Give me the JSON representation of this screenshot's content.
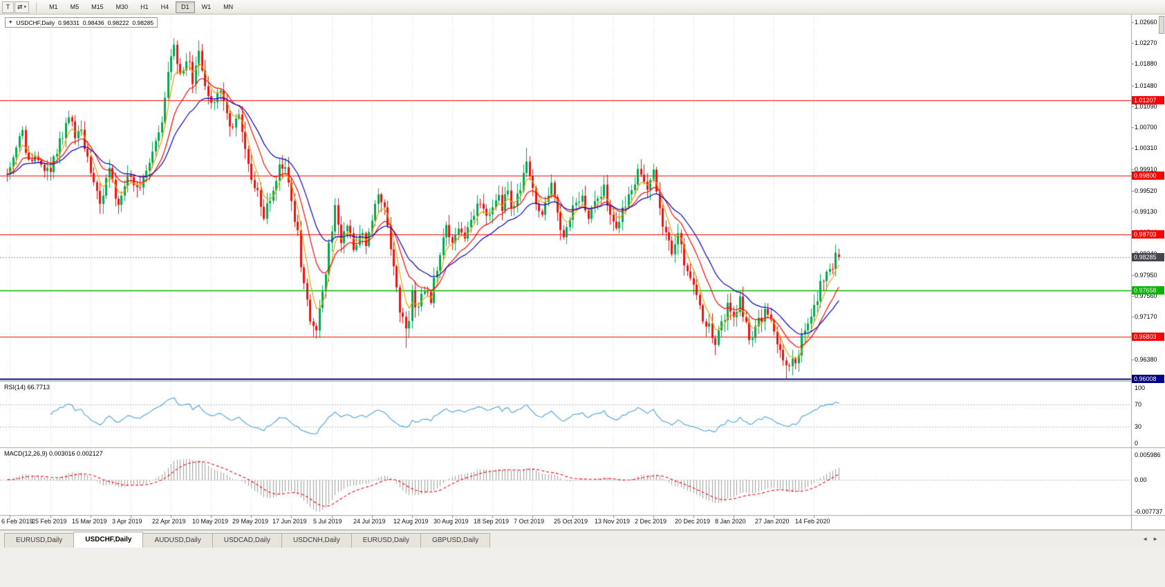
{
  "icons": {
    "dropdown": "▼",
    "caret": "▾",
    "arrange": "⇄",
    "tab_left": "◄",
    "tab_right": "►"
  },
  "toolbar": {
    "tool_button": "T",
    "timeframes": [
      "M1",
      "M5",
      "M15",
      "M30",
      "H1",
      "H4",
      "D1",
      "W1",
      "MN"
    ],
    "active_timeframe": "D1"
  },
  "chart_header": {
    "symbol": "USDCHF,Daily",
    "open": "0.98331",
    "high": "0.98436",
    "low": "0.98222",
    "close": "0.98285"
  },
  "price_axis_labels": [
    "1.02660",
    "1.02270",
    "1.01880",
    "1.01480",
    "1.01090",
    "1.00700",
    "1.00310",
    "0.99910",
    "0.99520",
    "0.99130",
    "0.98740",
    "0.98340",
    "0.97950",
    "0.97560",
    "0.97170",
    "0.96770",
    "0.96380",
    "0.95990"
  ],
  "levels": [
    {
      "price": 1.01207,
      "label": "1.01207",
      "color": "#ff0000"
    },
    {
      "price": 0.998,
      "label": "0.99800",
      "color": "#ff0000"
    },
    {
      "price": 0.98703,
      "label": "0.98703",
      "color": "#ff0000"
    },
    {
      "price": 0.96803,
      "label": "0.96803",
      "color": "#ff0000"
    },
    {
      "price": 0.97658,
      "label": "0.97658",
      "color": "#00b400"
    },
    {
      "price": 0.96008,
      "label": "0.96008",
      "color": "#000080"
    }
  ],
  "current_price": {
    "value": 0.98285,
    "label": "0.98285",
    "color": "#45454c"
  },
  "rsi_panel": {
    "title": "RSI(14) 66.7713",
    "axis": [
      "100",
      "70",
      "30",
      "0"
    ],
    "period": 14,
    "value": 66.7713
  },
  "macd_panel": {
    "title": "MACD(12,26,9) 0.003016 0.002127",
    "axis": [
      "0.005986",
      "0.00",
      "-0.007737"
    ],
    "macd": 0.003016,
    "signal": 0.002127
  },
  "date_axis": [
    "6 Feb 2019",
    "25 Feb 2019",
    "15 Mar 2019",
    "3 Apr 2019",
    "22 Apr 2019",
    "10 May 2019",
    "29 May 2019",
    "17 Jun 2019",
    "5 Jul 2019",
    "24 Jul 2019",
    "12 Aug 2019",
    "30 Aug 2019",
    "18 Sep 2019",
    "7 Oct 2019",
    "25 Oct 2019",
    "13 Nov 2019",
    "2 Dec 2019",
    "20 Dec 2019",
    "8 Jan 2020",
    "27 Jan 2020",
    "14 Feb 2020"
  ],
  "tabs": [
    {
      "label": "EURUSD,Daily",
      "active": false
    },
    {
      "label": "USDCHF,Daily",
      "active": true
    },
    {
      "label": "AUDUSD,Daily",
      "active": false
    },
    {
      "label": "USDCAD,Daily",
      "active": false
    },
    {
      "label": "USDCNH,Daily",
      "active": false
    },
    {
      "label": "EURUSD,Daily",
      "active": false
    },
    {
      "label": "GBPUSD,Daily",
      "active": false
    }
  ],
  "chart_data": {
    "type": "candlestick",
    "symbol": "USDCHF",
    "timeframe": "Daily",
    "candle_count": 270,
    "visible_price_range": [
      0.9599,
      1.028
    ],
    "last_candle": {
      "open": 0.98331,
      "high": 0.98436,
      "low": 0.98222,
      "close": 0.98285
    },
    "price_path_waypoints": [
      [
        0,
        0.9995
      ],
      [
        3,
        1.003
      ],
      [
        5,
        1.0055
      ],
      [
        7,
        1.001
      ],
      [
        10,
        1.0
      ],
      [
        13,
        0.9985
      ],
      [
        16,
        1.002
      ],
      [
        20,
        1.01
      ],
      [
        22,
        1.004
      ],
      [
        24,
        1.0065
      ],
      [
        27,
        0.9995
      ],
      [
        30,
        0.9925
      ],
      [
        33,
        0.9985
      ],
      [
        36,
        0.993
      ],
      [
        39,
        0.999
      ],
      [
        42,
        0.996
      ],
      [
        45,
        0.999
      ],
      [
        48,
        1.0035
      ],
      [
        50,
        1.009
      ],
      [
        52,
        1.018
      ],
      [
        54,
        1.0215
      ],
      [
        56,
        1.016
      ],
      [
        58,
        1.02
      ],
      [
        60,
        1.016
      ],
      [
        62,
        1.021
      ],
      [
        64,
        1.014
      ],
      [
        66,
        1.011
      ],
      [
        69,
        1.0145
      ],
      [
        72,
        1.0075
      ],
      [
        75,
        1.009
      ],
      [
        78,
        1.0
      ],
      [
        81,
        0.9945
      ],
      [
        83,
        0.9895
      ],
      [
        86,
        0.996
      ],
      [
        88,
        0.999
      ],
      [
        90,
        1.0
      ],
      [
        92,
        0.993
      ],
      [
        94,
        0.987
      ],
      [
        96,
        0.977
      ],
      [
        98,
        0.9715
      ],
      [
        100,
        0.9685
      ],
      [
        102,
        0.976
      ],
      [
        104,
        0.9855
      ],
      [
        106,
        0.9915
      ],
      [
        108,
        0.9855
      ],
      [
        110,
        0.9895
      ],
      [
        112,
        0.985
      ],
      [
        114,
        0.9875
      ],
      [
        116,
        0.9855
      ],
      [
        118,
        0.9905
      ],
      [
        120,
        0.995
      ],
      [
        122,
        0.992
      ],
      [
        124,
        0.9845
      ],
      [
        126,
        0.9765
      ],
      [
        128,
        0.9705
      ],
      [
        129,
        0.9685
      ],
      [
        131,
        0.9755
      ],
      [
        133,
        0.9725
      ],
      [
        135,
        0.977
      ],
      [
        137,
        0.9745
      ],
      [
        139,
        0.9815
      ],
      [
        142,
        0.9875
      ],
      [
        144,
        0.9855
      ],
      [
        146,
        0.989
      ],
      [
        148,
        0.986
      ],
      [
        151,
        0.9905
      ],
      [
        153,
        0.993
      ],
      [
        156,
        0.99
      ],
      [
        158,
        0.9945
      ],
      [
        160,
        0.992
      ],
      [
        162,
        0.995
      ],
      [
        164,
        0.9915
      ],
      [
        166,
        0.9965
      ],
      [
        168,
        1.001
      ],
      [
        170,
        0.9955
      ],
      [
        172,
        0.9905
      ],
      [
        174,
        0.993
      ],
      [
        176,
        0.9955
      ],
      [
        178,
        0.9915
      ],
      [
        180,
        0.986
      ],
      [
        182,
        0.99
      ],
      [
        184,
        0.993
      ],
      [
        186,
        0.995
      ],
      [
        188,
        0.99
      ],
      [
        191,
        0.993
      ],
      [
        193,
        0.9955
      ],
      [
        195,
        0.9915
      ],
      [
        197,
        0.989
      ],
      [
        199,
        0.992
      ],
      [
        201,
        0.9945
      ],
      [
        203,
        0.997
      ],
      [
        205,
        0.999
      ],
      [
        207,
        0.9955
      ],
      [
        209,
        0.998
      ],
      [
        211,
        0.992
      ],
      [
        213,
        0.987
      ],
      [
        215,
        0.984
      ],
      [
        217,
        0.9865
      ],
      [
        219,
        0.982
      ],
      [
        221,
        0.979
      ],
      [
        223,
        0.9755
      ],
      [
        225,
        0.972
      ],
      [
        227,
        0.9695
      ],
      [
        229,
        0.9665
      ],
      [
        231,
        0.97
      ],
      [
        233,
        0.974
      ],
      [
        235,
        0.972
      ],
      [
        237,
        0.9745
      ],
      [
        239,
        0.97
      ],
      [
        241,
        0.967
      ],
      [
        243,
        0.9705
      ],
      [
        245,
        0.973
      ],
      [
        247,
        0.97
      ],
      [
        249,
        0.9668
      ],
      [
        251,
        0.964
      ],
      [
        253,
        0.9622
      ],
      [
        255,
        0.9638
      ],
      [
        257,
        0.9672
      ],
      [
        259,
        0.971
      ],
      [
        261,
        0.9742
      ],
      [
        263,
        0.9772
      ],
      [
        265,
        0.9798
      ],
      [
        267,
        0.9818
      ],
      [
        269,
        0.9829
      ]
    ],
    "spikes": [
      {
        "index": 54,
        "high": 1.0236
      },
      {
        "index": 62,
        "high": 1.0232
      },
      {
        "index": 129,
        "low": 0.9659
      },
      {
        "index": 168,
        "high": 1.0032
      },
      {
        "index": 252,
        "low": 0.9601
      }
    ],
    "moving_averages": [
      {
        "period": 5,
        "type": "ema",
        "color": "#e8a200"
      },
      {
        "period": 13,
        "type": "ema",
        "color": "#ff0000"
      },
      {
        "period": 24,
        "type": "ema",
        "color": "#0000c8"
      }
    ],
    "colors": {
      "bull": "#00a84f",
      "bear": "#ee1111",
      "rsi": "#46a0e0",
      "macd_hist": "#9e9e9e",
      "macd_signal": "#ff0000",
      "grid": "#d9d9d9"
    }
  }
}
